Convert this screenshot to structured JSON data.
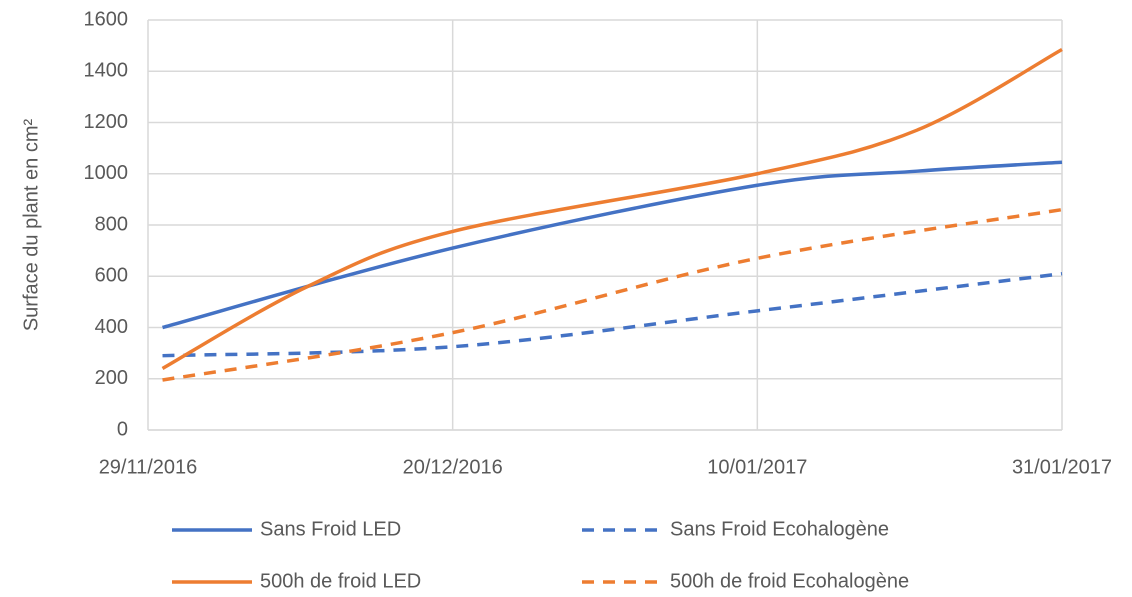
{
  "chart_data": {
    "type": "line",
    "ylabel": "Surface du plant en cm²",
    "xlim": [
      "29/11/2016",
      "31/01/2017"
    ],
    "xticks": [
      "29/11/2016",
      "20/12/2016",
      "10/01/2017",
      "31/01/2017"
    ],
    "ylim": [
      0,
      1600
    ],
    "yticks": [
      0,
      200,
      400,
      600,
      800,
      1000,
      1200,
      1400,
      1600
    ],
    "grid": true,
    "legend": "bottom",
    "series": [
      {
        "name": "Sans Froid LED",
        "color": "#4472c4",
        "dash": false,
        "x": [
          "30/11/2016",
          "20/12/2016",
          "10/01/2017",
          "21/01/2017",
          "31/01/2017"
        ],
        "values": [
          400,
          710,
          955,
          1010,
          1045
        ]
      },
      {
        "name": "Sans Froid Ecohalogène",
        "color": "#4472c4",
        "dash": true,
        "x": [
          "30/11/2016",
          "20/12/2016",
          "10/01/2017",
          "31/01/2017"
        ],
        "values": [
          290,
          325,
          465,
          610
        ]
      },
      {
        "name": "500h de froid LED",
        "color": "#ed7d31",
        "dash": false,
        "x": [
          "30/11/2016",
          "10/12/2016",
          "20/12/2016",
          "10/01/2017",
          "21/01/2017",
          "31/01/2017"
        ],
        "values": [
          240,
          560,
          775,
          1000,
          1170,
          1485
        ]
      },
      {
        "name": "500h de froid Ecohalogène",
        "color": "#ed7d31",
        "dash": true,
        "x": [
          "30/11/2016",
          "20/12/2016",
          "10/01/2017",
          "31/01/2017"
        ],
        "values": [
          195,
          380,
          670,
          860
        ]
      }
    ]
  }
}
